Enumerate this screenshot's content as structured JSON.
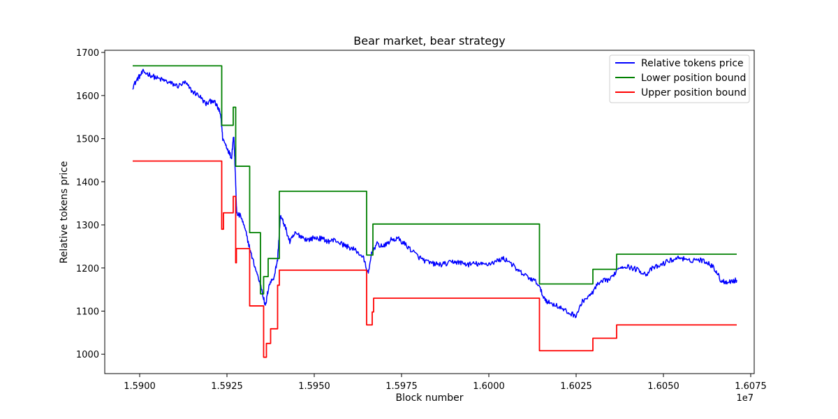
{
  "chart_data": {
    "type": "line",
    "title": "Bear market, bear strategy",
    "xlabel": "Block number",
    "ylabel": "Relative tokens price",
    "x_offset_label": "1e7",
    "xlim": [
      15890000,
      16076000
    ],
    "ylim": [
      955,
      1705
    ],
    "x_ticks": [
      15900000,
      15925000,
      15950000,
      15975000,
      16000000,
      16025000,
      16050000,
      16075000
    ],
    "x_tick_labels": [
      "1.5900",
      "1.5925",
      "1.5950",
      "1.5975",
      "1.6000",
      "1.6025",
      "1.6050",
      "1.6075"
    ],
    "y_ticks": [
      1000,
      1100,
      1200,
      1300,
      1400,
      1500,
      1600,
      1700
    ],
    "y_tick_labels": [
      "1000",
      "1100",
      "1200",
      "1300",
      "1400",
      "1500",
      "1600",
      "1700"
    ],
    "grid": false,
    "legend_position": "top-right",
    "colors": {
      "price": "#0000ff",
      "lower": "#008000",
      "upper": "#ff0000"
    },
    "series": [
      {
        "name": "Relative tokens price",
        "color": "#0000ff",
        "style": "noisy",
        "points": [
          [
            15898000,
            1620
          ],
          [
            15899500,
            1640
          ],
          [
            15901000,
            1655
          ],
          [
            15903000,
            1648
          ],
          [
            15905000,
            1640
          ],
          [
            15907000,
            1635
          ],
          [
            15909000,
            1628
          ],
          [
            15911000,
            1622
          ],
          [
            15913000,
            1630
          ],
          [
            15915000,
            1610
          ],
          [
            15917000,
            1600
          ],
          [
            15919000,
            1580
          ],
          [
            15921000,
            1590
          ],
          [
            15922500,
            1570
          ],
          [
            15923200,
            1555
          ],
          [
            15923800,
            1500
          ],
          [
            15925000,
            1480
          ],
          [
            15926300,
            1455
          ],
          [
            15926800,
            1500
          ],
          [
            15927000,
            1500
          ],
          [
            15927300,
            1440
          ],
          [
            15927800,
            1325
          ],
          [
            15929000,
            1320
          ],
          [
            15930500,
            1280
          ],
          [
            15932000,
            1230
          ],
          [
            15933500,
            1190
          ],
          [
            15935000,
            1150
          ],
          [
            15936000,
            1110
          ],
          [
            15937000,
            1160
          ],
          [
            15938500,
            1180
          ],
          [
            15939500,
            1220
          ],
          [
            15940300,
            1320
          ],
          [
            15941500,
            1300
          ],
          [
            15943000,
            1260
          ],
          [
            15944500,
            1280
          ],
          [
            15946000,
            1275
          ],
          [
            15948000,
            1265
          ],
          [
            15950000,
            1270
          ],
          [
            15952000,
            1268
          ],
          [
            15954000,
            1262
          ],
          [
            15956000,
            1265
          ],
          [
            15958000,
            1255
          ],
          [
            15960000,
            1248
          ],
          [
            15962000,
            1240
          ],
          [
            15964000,
            1225
          ],
          [
            15965500,
            1185
          ],
          [
            15966500,
            1240
          ],
          [
            15968000,
            1255
          ],
          [
            15970000,
            1250
          ],
          [
            15972000,
            1265
          ],
          [
            15974000,
            1268
          ],
          [
            15976000,
            1255
          ],
          [
            15978000,
            1240
          ],
          [
            15980000,
            1225
          ],
          [
            15982000,
            1215
          ],
          [
            15984000,
            1210
          ],
          [
            15986000,
            1208
          ],
          [
            15988000,
            1210
          ],
          [
            15990000,
            1215
          ],
          [
            15992000,
            1212
          ],
          [
            15994000,
            1208
          ],
          [
            15996000,
            1210
          ],
          [
            15998000,
            1208
          ],
          [
            16000000,
            1210
          ],
          [
            16002000,
            1215
          ],
          [
            16004000,
            1222
          ],
          [
            16006000,
            1215
          ],
          [
            16008000,
            1195
          ],
          [
            16010000,
            1185
          ],
          [
            16012000,
            1175
          ],
          [
            16014000,
            1165
          ],
          [
            16015500,
            1135
          ],
          [
            16017000,
            1120
          ],
          [
            16019000,
            1115
          ],
          [
            16021000,
            1105
          ],
          [
            16023000,
            1095
          ],
          [
            16025000,
            1090
          ],
          [
            16027000,
            1125
          ],
          [
            16029000,
            1135
          ],
          [
            16031000,
            1160
          ],
          [
            16033000,
            1170
          ],
          [
            16035000,
            1175
          ],
          [
            16037000,
            1200
          ],
          [
            16039000,
            1205
          ],
          [
            16041000,
            1200
          ],
          [
            16043000,
            1195
          ],
          [
            16045000,
            1185
          ],
          [
            16047000,
            1200
          ],
          [
            16049000,
            1205
          ],
          [
            16051000,
            1215
          ],
          [
            16053000,
            1220
          ],
          [
            16055000,
            1225
          ],
          [
            16057000,
            1215
          ],
          [
            16059000,
            1220
          ],
          [
            16061000,
            1218
          ],
          [
            16063000,
            1212
          ],
          [
            16065000,
            1195
          ],
          [
            16066500,
            1170
          ],
          [
            16068000,
            1168
          ],
          [
            16070000,
            1170
          ],
          [
            16071000,
            1172
          ]
        ]
      },
      {
        "name": "Lower position bound",
        "color": "#008000",
        "style": "step",
        "points": [
          [
            15898000,
            1669
          ],
          [
            15923500,
            1669
          ],
          [
            15923500,
            1531
          ],
          [
            15926800,
            1531
          ],
          [
            15926800,
            1573
          ],
          [
            15927500,
            1573
          ],
          [
            15927500,
            1436
          ],
          [
            15931500,
            1436
          ],
          [
            15931500,
            1282
          ],
          [
            15934600,
            1282
          ],
          [
            15934600,
            1140
          ],
          [
            15935500,
            1140
          ],
          [
            15935500,
            1180
          ],
          [
            15936800,
            1180
          ],
          [
            15936800,
            1222
          ],
          [
            15940000,
            1222
          ],
          [
            15940000,
            1378
          ],
          [
            15965000,
            1378
          ],
          [
            15965000,
            1230
          ],
          [
            15966800,
            1230
          ],
          [
            15966800,
            1302
          ],
          [
            16014500,
            1302
          ],
          [
            16014500,
            1163
          ],
          [
            16029800,
            1163
          ],
          [
            16029800,
            1197
          ],
          [
            16036600,
            1197
          ],
          [
            16036600,
            1232
          ],
          [
            16071000,
            1232
          ]
        ]
      },
      {
        "name": "Upper position bound",
        "color": "#ff0000",
        "style": "step",
        "points": [
          [
            15898000,
            1448
          ],
          [
            15923500,
            1448
          ],
          [
            15923500,
            1290
          ],
          [
            15924000,
            1290
          ],
          [
            15924000,
            1328
          ],
          [
            15926800,
            1328
          ],
          [
            15926800,
            1366
          ],
          [
            15927500,
            1366
          ],
          [
            15927500,
            1212
          ],
          [
            15927700,
            1212
          ],
          [
            15927700,
            1245
          ],
          [
            15931500,
            1245
          ],
          [
            15931500,
            1112
          ],
          [
            15935500,
            1112
          ],
          [
            15935500,
            993
          ],
          [
            15936300,
            993
          ],
          [
            15936300,
            1025
          ],
          [
            15937500,
            1025
          ],
          [
            15937500,
            1059
          ],
          [
            15939500,
            1059
          ],
          [
            15939500,
            1160
          ],
          [
            15940000,
            1160
          ],
          [
            15940000,
            1195
          ],
          [
            15965000,
            1195
          ],
          [
            15965000,
            1068
          ],
          [
            15966600,
            1068
          ],
          [
            15966600,
            1098
          ],
          [
            15967000,
            1098
          ],
          [
            15967000,
            1130
          ],
          [
            16014500,
            1130
          ],
          [
            16014500,
            1008
          ],
          [
            16029800,
            1008
          ],
          [
            16029800,
            1037
          ],
          [
            16036600,
            1037
          ],
          [
            16036600,
            1068
          ],
          [
            16071000,
            1068
          ]
        ]
      }
    ]
  }
}
